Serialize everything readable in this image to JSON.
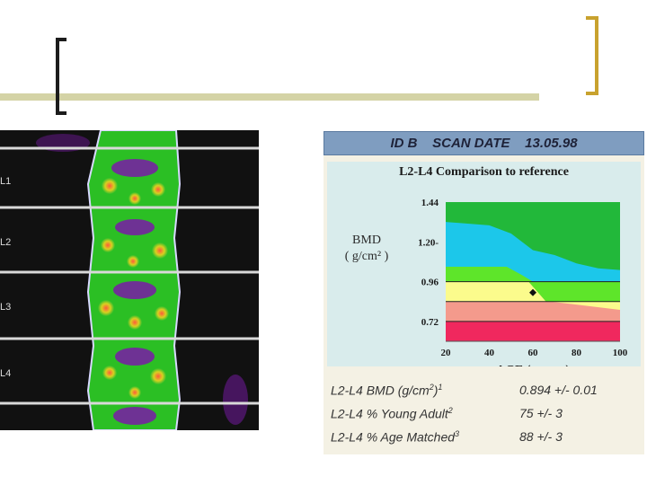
{
  "slide": {
    "accent_rule_color": "#d4d3a6",
    "left_bracket_color": "#1c1c1c",
    "right_bracket_color": "#c8a22e"
  },
  "scan": {
    "vertebra_labels": [
      "L1",
      "L2",
      "L3",
      "L4"
    ]
  },
  "report": {
    "header": "ID B    SCAN DATE    13.05.98",
    "results": [
      {
        "label": "L2-L4 BMD (g/cm",
        "label_sup2": "2",
        "label_close": ")",
        "note": "1",
        "value": "0.894 +/- 0.01"
      },
      {
        "label": "L2-L4 % Young Adult",
        "note": "2",
        "value": "75 +/- 3"
      },
      {
        "label": "L2-L4 % Age Matched",
        "note": "3",
        "value": "88 +/- 3"
      }
    ]
  },
  "chart_data": {
    "type": "area",
    "title": "L2-L4 Comparison to reference",
    "xlabel": "AGE  ( years )",
    "ylabel": "BMD",
    "ylabel_unit": "( g/cm² )",
    "xlim": [
      20,
      100
    ],
    "ylim": [
      0.6,
      1.44
    ],
    "x_ticks": [
      20,
      40,
      60,
      80,
      100
    ],
    "y_ticks": [
      0.72,
      0.96,
      1.2,
      1.44
    ],
    "y_tick_labels": [
      "0.72",
      "0.96",
      "1.20-",
      "1.44"
    ],
    "bands": [
      {
        "name": "green",
        "color": "#22b83a",
        "upper": [
          [
            20,
            1.44
          ],
          [
            100,
            1.44
          ]
        ],
        "lower_ref": "cyan"
      },
      {
        "name": "cyan",
        "color": "#1cc7ea",
        "upper": [
          [
            20,
            1.32
          ],
          [
            40,
            1.3
          ],
          [
            50,
            1.25
          ],
          [
            60,
            1.15
          ],
          [
            70,
            1.12
          ],
          [
            80,
            1.07
          ],
          [
            90,
            1.04
          ],
          [
            100,
            1.03
          ]
        ]
      },
      {
        "name": "light-green",
        "color": "#5ee52a",
        "upper": [
          [
            20,
            1.05
          ],
          [
            48,
            1.05
          ],
          [
            55,
            1.0
          ],
          [
            60,
            0.96
          ],
          [
            100,
            0.96
          ]
        ]
      },
      {
        "name": "yellow",
        "color": "#fbfb8c",
        "upper": [
          [
            20,
            0.96
          ],
          [
            58,
            0.96
          ],
          [
            62,
            0.9
          ],
          [
            66,
            0.84
          ],
          [
            100,
            0.84
          ]
        ]
      },
      {
        "name": "salmon",
        "color": "#f49a8c",
        "upper": [
          [
            20,
            0.84
          ],
          [
            68,
            0.84
          ],
          [
            100,
            0.79
          ]
        ]
      },
      {
        "name": "pink",
        "color": "#f0285e",
        "upper": [
          [
            20,
            0.72
          ],
          [
            100,
            0.72
          ]
        ]
      }
    ],
    "reference_lines": [
      0.96,
      0.84,
      0.72
    ],
    "patient_point": {
      "age": 60,
      "bmd": 0.894
    }
  }
}
